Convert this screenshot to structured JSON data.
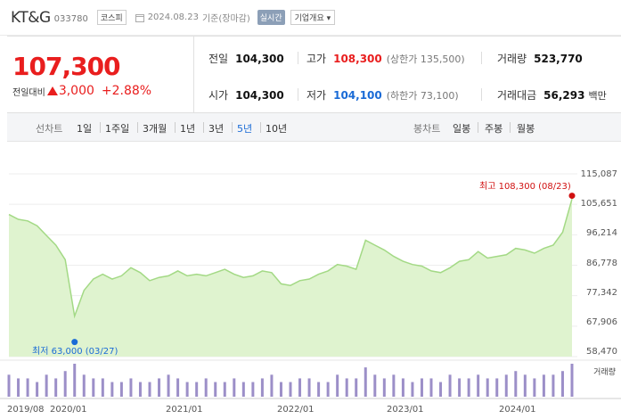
{
  "header": {
    "name": "KT&G",
    "code": "033780",
    "market": "코스피",
    "date": "2024.08.23",
    "basis": "기준(장마감)",
    "realtime": "실시간",
    "overview": "기업개요 ▾"
  },
  "price": {
    "current": "107,300",
    "compare_label": "전일대비",
    "change": "3,000",
    "rate": "+2.88%",
    "direction": "up"
  },
  "stats": {
    "prev_label": "전일",
    "prev": "104,300",
    "high_label": "고가",
    "high": "108,300",
    "high_sub": "(상한가 135,500)",
    "volume_label": "거래량",
    "volume": "523,770",
    "open_label": "시가",
    "open": "104,300",
    "low_label": "저가",
    "low": "104,100",
    "low_sub": "(하한가 73,100)",
    "amount_label": "거래대금",
    "amount": "56,293",
    "amount_unit": "백만"
  },
  "range_bar": {
    "line_title": "선차트",
    "line_options": [
      "1일",
      "1주일",
      "3개월",
      "1년",
      "3년",
      "5년",
      "10년"
    ],
    "selected": "5년",
    "candle_title": "봉차트",
    "candle_options": [
      "일봉",
      "주봉",
      "월봉"
    ]
  },
  "chart_data": {
    "type": "area",
    "x": [
      "2019/08",
      "2019/09",
      "2019/10",
      "2019/11",
      "2019/12",
      "2020/01",
      "2020/02",
      "2020/03",
      "2020/04",
      "2020/05",
      "2020/06",
      "2020/07",
      "2020/08",
      "2020/09",
      "2020/10",
      "2020/11",
      "2020/12",
      "2021/01",
      "2021/02",
      "2021/03",
      "2021/04",
      "2021/05",
      "2021/06",
      "2021/07",
      "2021/08",
      "2021/09",
      "2021/10",
      "2021/11",
      "2021/12",
      "2022/01",
      "2022/02",
      "2022/03",
      "2022/04",
      "2022/05",
      "2022/06",
      "2022/07",
      "2022/08",
      "2022/09",
      "2022/10",
      "2022/11",
      "2022/12",
      "2023/01",
      "2023/02",
      "2023/03",
      "2023/04",
      "2023/05",
      "2023/06",
      "2023/07",
      "2023/08",
      "2023/09",
      "2023/10",
      "2023/11",
      "2023/12",
      "2024/01",
      "2024/02",
      "2024/03",
      "2024/04",
      "2024/05",
      "2024/06",
      "2024/07",
      "2024/08"
    ],
    "values": [
      102500,
      101000,
      100500,
      99000,
      96000,
      93000,
      88500,
      71000,
      79000,
      82500,
      84000,
      82500,
      83500,
      86000,
      84500,
      82000,
      83000,
      83500,
      85000,
      83500,
      84000,
      83500,
      84500,
      85500,
      84000,
      83000,
      83500,
      85000,
      84500,
      81000,
      80500,
      82000,
      82500,
      84000,
      85000,
      87000,
      86500,
      85500,
      94500,
      93000,
      91500,
      89500,
      88000,
      87000,
      86500,
      85000,
      84500,
      86000,
      88000,
      88500,
      91000,
      89000,
      89500,
      90000,
      92000,
      91500,
      90500,
      92000,
      93000,
      97000,
      107300
    ],
    "volumes": [
      6,
      5,
      5,
      4,
      6,
      5,
      7,
      9,
      6,
      5,
      5,
      4,
      4,
      5,
      4,
      4,
      5,
      6,
      5,
      4,
      4,
      5,
      4,
      4,
      5,
      4,
      4,
      5,
      6,
      4,
      4,
      5,
      5,
      4,
      4,
      6,
      5,
      5,
      8,
      6,
      5,
      6,
      5,
      4,
      5,
      5,
      4,
      6,
      5,
      5,
      6,
      5,
      5,
      6,
      7,
      6,
      5,
      6,
      6,
      7,
      9
    ],
    "ylim": [
      58470,
      115087
    ],
    "yticks": [
      "115,087",
      "105,651",
      "96,214",
      "86,778",
      "77,342",
      "67,906",
      "58,470"
    ],
    "xticks": [
      "2019/08",
      "2020/01",
      "2021/01",
      "2022/01",
      "2023/01",
      "2024/01"
    ],
    "max_label": "최고 108,300 (08/23)",
    "min_label": "최저 63,000 (03/27)",
    "max_value": 108300,
    "min_value": 63000,
    "volume_label": "거래량",
    "line_color": "#a3d985",
    "fill_color": "#dff3cf",
    "volume_color": "#9c8fc8",
    "max_color": "#d01010",
    "min_color": "#1a6bd6"
  }
}
